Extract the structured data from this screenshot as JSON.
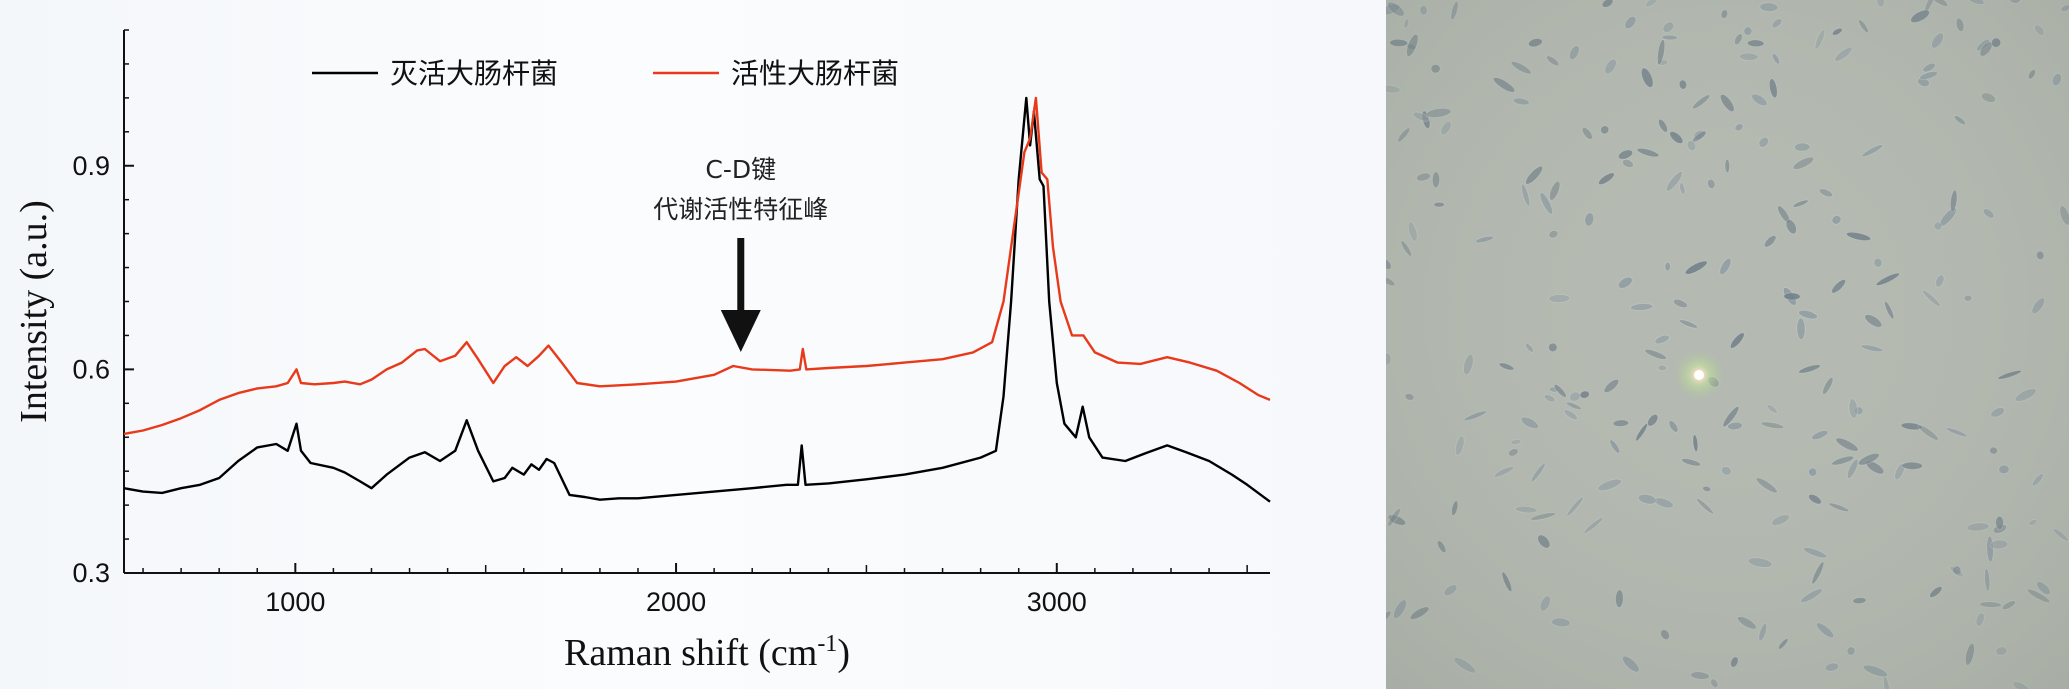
{
  "chart_data": {
    "type": "line",
    "xlabel": "Raman shift (cm",
    "xlabel_sup": "-1",
    "xlabel_close": ")",
    "ylabel": "Intensity (a.u.)",
    "xlim": [
      550,
      3560
    ],
    "ylim": [
      0.3,
      1.1
    ],
    "x_ticks": [
      1000,
      2000,
      3000
    ],
    "x_tick_labels": [
      "1000",
      "2000",
      "3000"
    ],
    "y_ticks": [
      0.3,
      0.6,
      0.9
    ],
    "y_tick_labels": [
      "0.3",
      "0.6",
      "0.9"
    ],
    "legend_position": "top-left",
    "grid": false,
    "series": [
      {
        "name": "灭活大肠杆菌",
        "color": "#000000",
        "points": [
          [
            550,
            0.425
          ],
          [
            600,
            0.42
          ],
          [
            650,
            0.418
          ],
          [
            700,
            0.425
          ],
          [
            750,
            0.43
          ],
          [
            800,
            0.44
          ],
          [
            850,
            0.465
          ],
          [
            900,
            0.485
          ],
          [
            950,
            0.49
          ],
          [
            980,
            0.48
          ],
          [
            1003,
            0.52
          ],
          [
            1015,
            0.48
          ],
          [
            1040,
            0.462
          ],
          [
            1100,
            0.455
          ],
          [
            1130,
            0.448
          ],
          [
            1170,
            0.435
          ],
          [
            1200,
            0.425
          ],
          [
            1240,
            0.445
          ],
          [
            1300,
            0.47
          ],
          [
            1340,
            0.478
          ],
          [
            1380,
            0.465
          ],
          [
            1420,
            0.48
          ],
          [
            1450,
            0.525
          ],
          [
            1480,
            0.48
          ],
          [
            1520,
            0.435
          ],
          [
            1550,
            0.44
          ],
          [
            1570,
            0.455
          ],
          [
            1600,
            0.445
          ],
          [
            1620,
            0.46
          ],
          [
            1640,
            0.452
          ],
          [
            1660,
            0.468
          ],
          [
            1680,
            0.462
          ],
          [
            1720,
            0.415
          ],
          [
            1760,
            0.412
          ],
          [
            1800,
            0.408
          ],
          [
            1850,
            0.41
          ],
          [
            1900,
            0.41
          ],
          [
            2000,
            0.415
          ],
          [
            2100,
            0.42
          ],
          [
            2200,
            0.425
          ],
          [
            2290,
            0.43
          ],
          [
            2320,
            0.43
          ],
          [
            2330,
            0.488
          ],
          [
            2340,
            0.43
          ],
          [
            2400,
            0.432
          ],
          [
            2500,
            0.438
          ],
          [
            2600,
            0.445
          ],
          [
            2700,
            0.455
          ],
          [
            2800,
            0.47
          ],
          [
            2840,
            0.48
          ],
          [
            2860,
            0.56
          ],
          [
            2880,
            0.7
          ],
          [
            2900,
            0.88
          ],
          [
            2920,
            1.0
          ],
          [
            2930,
            0.93
          ],
          [
            2940,
            0.98
          ],
          [
            2955,
            0.88
          ],
          [
            2965,
            0.87
          ],
          [
            2980,
            0.7
          ],
          [
            3000,
            0.58
          ],
          [
            3020,
            0.52
          ],
          [
            3050,
            0.5
          ],
          [
            3068,
            0.545
          ],
          [
            3085,
            0.5
          ],
          [
            3120,
            0.47
          ],
          [
            3180,
            0.465
          ],
          [
            3240,
            0.478
          ],
          [
            3290,
            0.488
          ],
          [
            3340,
            0.478
          ],
          [
            3400,
            0.465
          ],
          [
            3460,
            0.445
          ],
          [
            3500,
            0.43
          ],
          [
            3560,
            0.405
          ]
        ]
      },
      {
        "name": "活性大肠杆菌",
        "color": "#e8391b",
        "points": [
          [
            550,
            0.505
          ],
          [
            600,
            0.51
          ],
          [
            650,
            0.518
          ],
          [
            700,
            0.528
          ],
          [
            750,
            0.54
          ],
          [
            800,
            0.555
          ],
          [
            850,
            0.565
          ],
          [
            900,
            0.572
          ],
          [
            950,
            0.575
          ],
          [
            980,
            0.58
          ],
          [
            1003,
            0.6
          ],
          [
            1015,
            0.58
          ],
          [
            1050,
            0.578
          ],
          [
            1100,
            0.58
          ],
          [
            1130,
            0.582
          ],
          [
            1170,
            0.578
          ],
          [
            1200,
            0.585
          ],
          [
            1240,
            0.6
          ],
          [
            1280,
            0.61
          ],
          [
            1320,
            0.628
          ],
          [
            1340,
            0.63
          ],
          [
            1380,
            0.612
          ],
          [
            1420,
            0.62
          ],
          [
            1450,
            0.64
          ],
          [
            1480,
            0.615
          ],
          [
            1520,
            0.58
          ],
          [
            1550,
            0.605
          ],
          [
            1580,
            0.618
          ],
          [
            1610,
            0.605
          ],
          [
            1640,
            0.62
          ],
          [
            1665,
            0.635
          ],
          [
            1700,
            0.61
          ],
          [
            1740,
            0.58
          ],
          [
            1800,
            0.575
          ],
          [
            1900,
            0.578
          ],
          [
            2000,
            0.582
          ],
          [
            2100,
            0.592
          ],
          [
            2150,
            0.605
          ],
          [
            2200,
            0.6
          ],
          [
            2300,
            0.598
          ],
          [
            2325,
            0.6
          ],
          [
            2333,
            0.63
          ],
          [
            2342,
            0.6
          ],
          [
            2400,
            0.602
          ],
          [
            2500,
            0.605
          ],
          [
            2600,
            0.61
          ],
          [
            2700,
            0.615
          ],
          [
            2780,
            0.625
          ],
          [
            2830,
            0.64
          ],
          [
            2860,
            0.7
          ],
          [
            2890,
            0.82
          ],
          [
            2915,
            0.92
          ],
          [
            2930,
            0.94
          ],
          [
            2945,
            1.0
          ],
          [
            2960,
            0.89
          ],
          [
            2975,
            0.88
          ],
          [
            2990,
            0.78
          ],
          [
            3010,
            0.7
          ],
          [
            3040,
            0.65
          ],
          [
            3070,
            0.65
          ],
          [
            3100,
            0.625
          ],
          [
            3160,
            0.61
          ],
          [
            3220,
            0.608
          ],
          [
            3290,
            0.618
          ],
          [
            3350,
            0.61
          ],
          [
            3420,
            0.598
          ],
          [
            3480,
            0.58
          ],
          [
            3530,
            0.562
          ],
          [
            3560,
            0.555
          ]
        ]
      }
    ],
    "annotation": {
      "lines": [
        "C-D键",
        "代谢活性特征峰"
      ],
      "arrow_x": 2170
    }
  },
  "colors": {
    "chart_background": "#f6f8fb",
    "micro_background": "#b3b9b0",
    "arrow": "#111111"
  },
  "micrograph": {
    "content": "bright-field microscope image of bacterial cells with laser spot"
  }
}
